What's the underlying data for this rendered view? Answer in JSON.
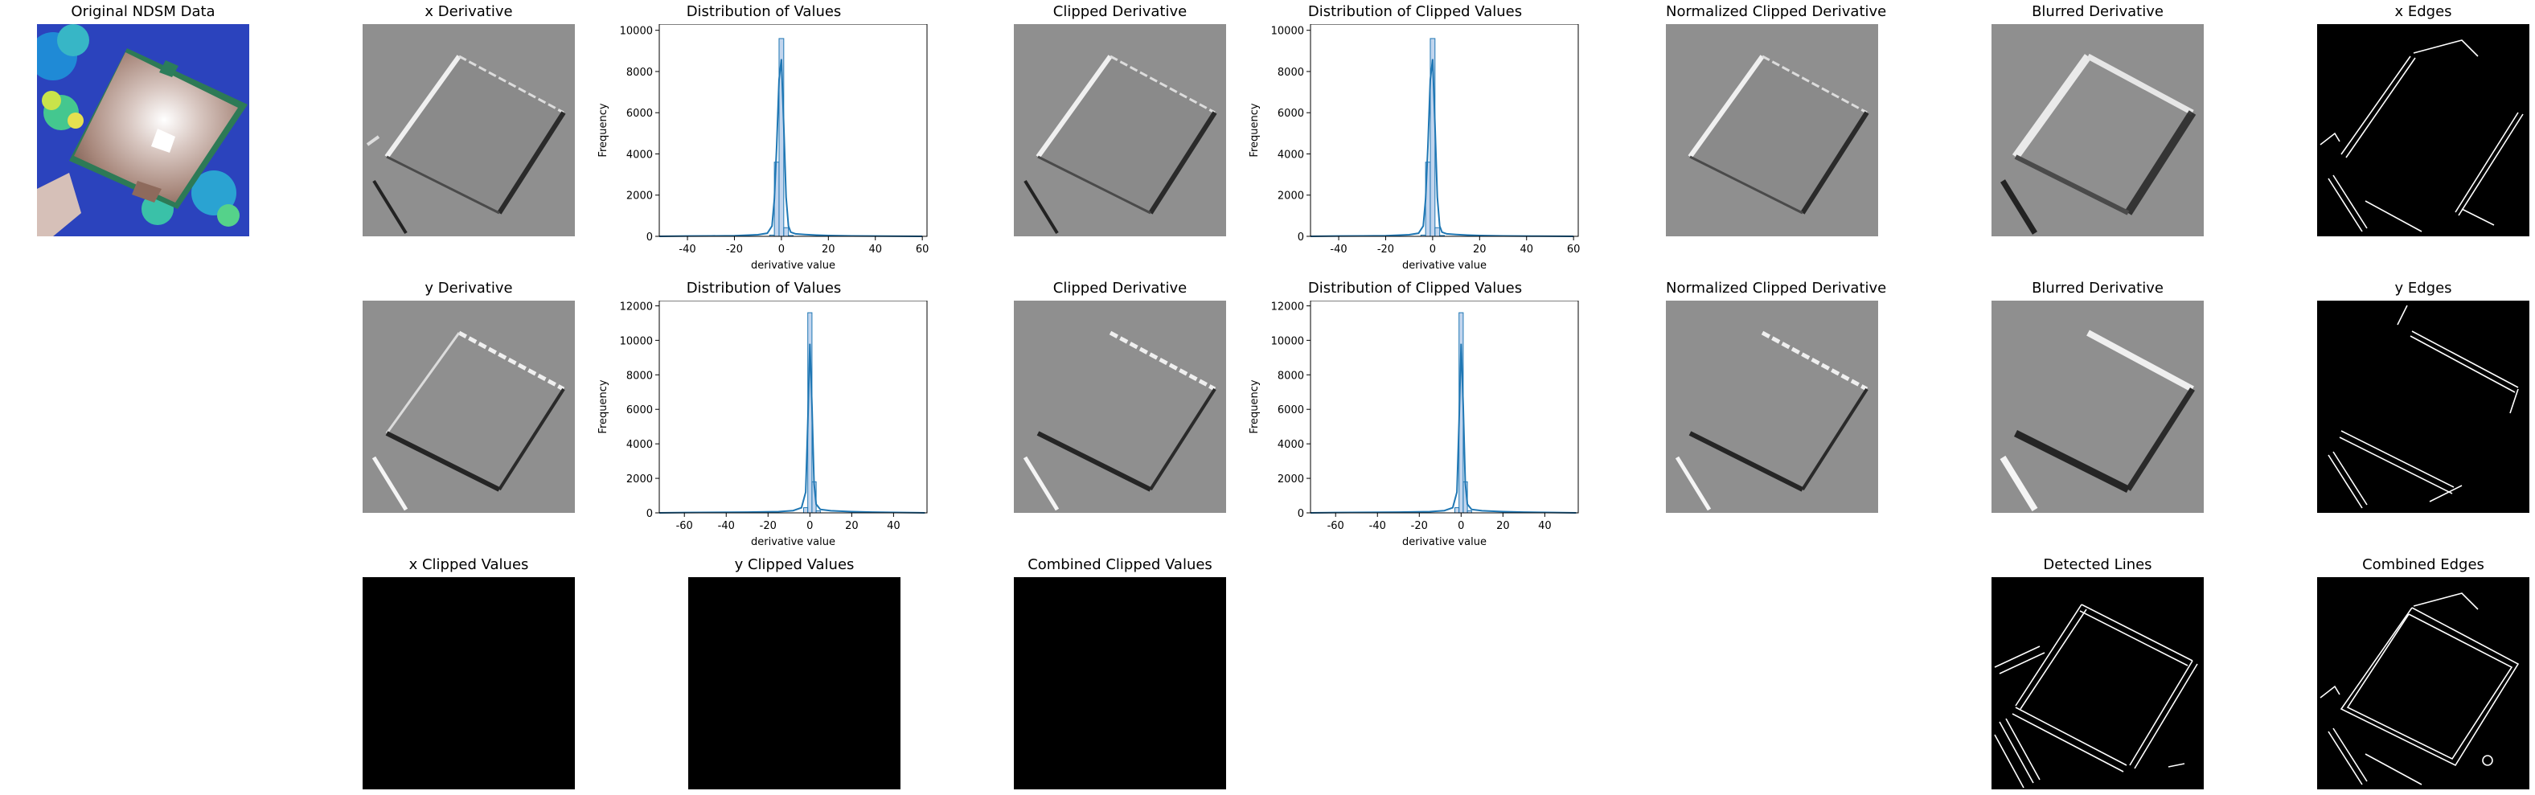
{
  "titles": {
    "original": "Original NDSM Data",
    "xderiv": "x Derivative",
    "xdist": "Distribution of Values",
    "xclip": "Clipped Derivative",
    "xclipdist": "Distribution of Clipped Values",
    "xnorm": "Normalized Clipped Derivative",
    "xblur": "Blurred Derivative",
    "xedges": "x Edges",
    "yderiv": "y Derivative",
    "ydist": "Distribution of Values",
    "yclip": "Clipped Derivative",
    "yclipdist": "Distribution of Clipped Values",
    "ynorm": "Normalized Clipped Derivative",
    "yblur": "Blurred Derivative",
    "yedges": "y Edges",
    "xclipvals": "x Clipped Values",
    "yclipvals": "y Clipped Values",
    "combclip": "Combined Clipped Values",
    "lines": "Detected Lines",
    "combedges": "Combined Edges"
  },
  "chart_data": [
    {
      "id": "xdist",
      "type": "bar",
      "title": "Distribution of Values",
      "xlabel": "derivative value",
      "ylabel": "Frequency",
      "xlim": [
        -52,
        62
      ],
      "ylim": [
        0,
        10300
      ],
      "xticks": [
        -40,
        -20,
        0,
        20,
        40,
        60
      ],
      "yticks": [
        0,
        2000,
        4000,
        6000,
        8000,
        10000
      ],
      "bins": [
        {
          "x0": -5,
          "x1": -3,
          "y": 60
        },
        {
          "x0": -3,
          "x1": -1,
          "y": 3600
        },
        {
          "x0": -1,
          "x1": 1,
          "y": 9600
        },
        {
          "x0": 1,
          "x1": 3,
          "y": 420
        },
        {
          "x0": 3,
          "x1": 5,
          "y": 40
        }
      ],
      "kde": [
        [
          -52,
          0
        ],
        [
          -40,
          15
        ],
        [
          -30,
          20
        ],
        [
          -20,
          30
        ],
        [
          -10,
          80
        ],
        [
          -6,
          150
        ],
        [
          -4,
          500
        ],
        [
          -3,
          1800
        ],
        [
          -2,
          4400
        ],
        [
          -1,
          7600
        ],
        [
          0,
          8600
        ],
        [
          1,
          5400
        ],
        [
          2,
          1900
        ],
        [
          3,
          500
        ],
        [
          4,
          200
        ],
        [
          6,
          120
        ],
        [
          10,
          90
        ],
        [
          15,
          60
        ],
        [
          20,
          40
        ],
        [
          30,
          20
        ],
        [
          45,
          10
        ],
        [
          60,
          0
        ]
      ]
    },
    {
      "id": "xclipdist",
      "type": "bar",
      "title": "Distribution of Clipped Values",
      "xlabel": "derivative value",
      "ylabel": "Frequency",
      "xlim": [
        -52,
        62
      ],
      "ylim": [
        0,
        10300
      ],
      "xticks": [
        -40,
        -20,
        0,
        20,
        40,
        60
      ],
      "yticks": [
        0,
        2000,
        4000,
        6000,
        8000,
        10000
      ],
      "bins": [
        {
          "x0": -5,
          "x1": -3,
          "y": 60
        },
        {
          "x0": -3,
          "x1": -1,
          "y": 3600
        },
        {
          "x0": -1,
          "x1": 1,
          "y": 9600
        },
        {
          "x0": 1,
          "x1": 3,
          "y": 420
        },
        {
          "x0": 3,
          "x1": 5,
          "y": 40
        }
      ],
      "kde": [
        [
          -52,
          0
        ],
        [
          -40,
          15
        ],
        [
          -30,
          20
        ],
        [
          -20,
          30
        ],
        [
          -10,
          80
        ],
        [
          -6,
          150
        ],
        [
          -4,
          500
        ],
        [
          -3,
          1800
        ],
        [
          -2,
          4400
        ],
        [
          -1,
          7600
        ],
        [
          0,
          8600
        ],
        [
          1,
          5400
        ],
        [
          2,
          1900
        ],
        [
          3,
          500
        ],
        [
          4,
          200
        ],
        [
          6,
          120
        ],
        [
          10,
          90
        ],
        [
          15,
          60
        ],
        [
          20,
          40
        ],
        [
          30,
          20
        ],
        [
          45,
          10
        ],
        [
          60,
          0
        ]
      ]
    },
    {
      "id": "ydist",
      "type": "bar",
      "title": "Distribution of Values",
      "xlabel": "derivative value",
      "ylabel": "Frequency",
      "xlim": [
        -72,
        56
      ],
      "ylim": [
        0,
        12300
      ],
      "xticks": [
        -60,
        -40,
        -20,
        0,
        20,
        40
      ],
      "yticks": [
        0,
        2000,
        4000,
        6000,
        8000,
        10000,
        12000
      ],
      "bins": [
        {
          "x0": -3,
          "x1": -1,
          "y": 300
        },
        {
          "x0": -1,
          "x1": 1,
          "y": 11600
        },
        {
          "x0": 1,
          "x1": 3,
          "y": 1800
        },
        {
          "x0": 3,
          "x1": 5,
          "y": 120
        }
      ],
      "kde": [
        [
          -72,
          0
        ],
        [
          -60,
          20
        ],
        [
          -45,
          30
        ],
        [
          -30,
          40
        ],
        [
          -15,
          70
        ],
        [
          -8,
          130
        ],
        [
          -4,
          300
        ],
        [
          -2,
          1200
        ],
        [
          -1,
          5200
        ],
        [
          0,
          9800
        ],
        [
          1,
          6200
        ],
        [
          2,
          1700
        ],
        [
          3,
          500
        ],
        [
          5,
          200
        ],
        [
          10,
          120
        ],
        [
          20,
          70
        ],
        [
          30,
          40
        ],
        [
          45,
          15
        ],
        [
          55,
          0
        ]
      ]
    },
    {
      "id": "yclipdist",
      "type": "bar",
      "title": "Distribution of Clipped Values",
      "xlabel": "derivative value",
      "ylabel": "Frequency",
      "xlim": [
        -72,
        56
      ],
      "ylim": [
        0,
        12300
      ],
      "xticks": [
        -60,
        -40,
        -20,
        0,
        20,
        40
      ],
      "yticks": [
        0,
        2000,
        4000,
        6000,
        8000,
        10000,
        12000
      ],
      "bins": [
        {
          "x0": -3,
          "x1": -1,
          "y": 300
        },
        {
          "x0": -1,
          "x1": 1,
          "y": 11600
        },
        {
          "x0": 1,
          "x1": 3,
          "y": 1800
        },
        {
          "x0": 3,
          "x1": 5,
          "y": 120
        }
      ],
      "kde": [
        [
          -72,
          0
        ],
        [
          -60,
          20
        ],
        [
          -45,
          30
        ],
        [
          -30,
          40
        ],
        [
          -15,
          70
        ],
        [
          -8,
          130
        ],
        [
          -4,
          300
        ],
        [
          -2,
          1200
        ],
        [
          -1,
          5200
        ],
        [
          0,
          9800
        ],
        [
          1,
          6200
        ],
        [
          2,
          1700
        ],
        [
          3,
          500
        ],
        [
          5,
          200
        ],
        [
          10,
          120
        ],
        [
          20,
          70
        ],
        [
          30,
          40
        ],
        [
          45,
          15
        ],
        [
          55,
          0
        ]
      ]
    }
  ]
}
